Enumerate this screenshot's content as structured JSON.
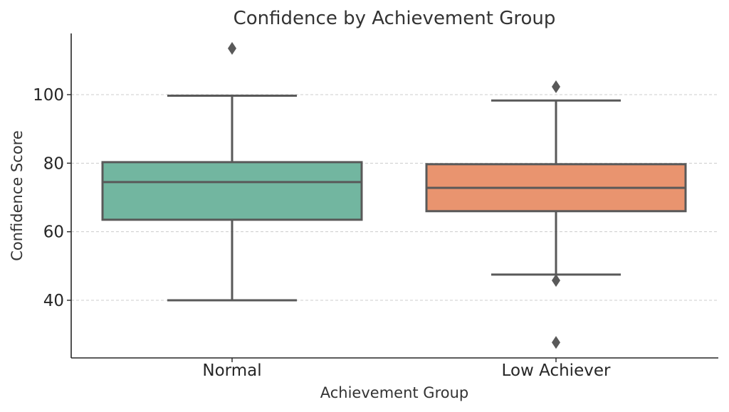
{
  "chart_data": {
    "type": "box",
    "title": "Confidence by Achievement Group",
    "xlabel": "Achievement Group",
    "ylabel": "Confidence Score",
    "ylim": [
      23,
      118
    ],
    "yticks": [
      40,
      60,
      80,
      100
    ],
    "grid": "y-dashed",
    "categories": [
      "Normal",
      "Low Achiever"
    ],
    "colors": [
      "#72b6a0",
      "#e9946f"
    ],
    "boxes": [
      {
        "category": "Normal",
        "whisker_low": 40,
        "q1": 63.5,
        "median": 74.5,
        "q3": 80.3,
        "whisker_high": 99.7,
        "outliers": [
          113.5
        ]
      },
      {
        "category": "Low Achiever",
        "whisker_low": 47.5,
        "q1": 66,
        "median": 72.8,
        "q3": 79.7,
        "whisker_high": 98.3,
        "outliers": [
          102.3,
          45.8,
          27.7
        ]
      }
    ]
  }
}
